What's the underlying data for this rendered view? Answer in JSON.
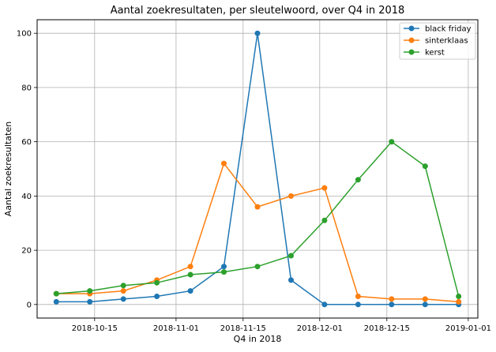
{
  "chart_data": {
    "type": "line",
    "title": "Aantal zoekresultaten, per sleutelwoord, over Q4 in 2018",
    "xlabel": "Q4 in 2018",
    "ylabel": "Aantal zoekresultaten",
    "x_axis_type": "date",
    "xlim": [
      "2018-10-03",
      "2019-01-03"
    ],
    "ylim": [
      -5,
      105
    ],
    "x_ticks": [
      "2018-10-15",
      "2018-11-01",
      "2018-11-15",
      "2018-12-01",
      "2018-12-15",
      "2019-01-01"
    ],
    "y_ticks": [
      0,
      20,
      40,
      60,
      80,
      100
    ],
    "grid": true,
    "legend_position": "top-right",
    "x": [
      "2018-10-07",
      "2018-10-14",
      "2018-10-21",
      "2018-10-28",
      "2018-11-04",
      "2018-11-11",
      "2018-11-18",
      "2018-11-25",
      "2018-12-02",
      "2018-12-09",
      "2018-12-16",
      "2018-12-23",
      "2018-12-30"
    ],
    "series": [
      {
        "name": "black friday",
        "color": "#1f77b4",
        "values": [
          1,
          1,
          2,
          3,
          5,
          14,
          100,
          9,
          0,
          0,
          0,
          0,
          0
        ]
      },
      {
        "name": "sinterklaas",
        "color": "#ff7f0e",
        "values": [
          4,
          4,
          5,
          9,
          14,
          52,
          36,
          40,
          43,
          3,
          2,
          2,
          1
        ]
      },
      {
        "name": "kerst",
        "color": "#2ca02c",
        "values": [
          4,
          5,
          7,
          8,
          11,
          12,
          14,
          18,
          31,
          46,
          60,
          51,
          3
        ]
      }
    ]
  }
}
